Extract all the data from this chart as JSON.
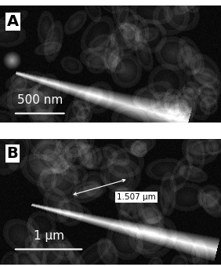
{
  "fig_width": 2.82,
  "fig_height": 3.4,
  "dpi": 100,
  "panel_A_label": "A",
  "panel_B_label": "B",
  "scale_bar_A_text": "500 nm",
  "scale_bar_B_text": "1 μm",
  "measurement_text": "1.507 μm",
  "bg_color": "#111111",
  "separator_color": "#ffffff",
  "label_bg_color": "#ffffff",
  "label_text_color": "#000000",
  "scale_bar_color": "#ffffff",
  "measurement_line_color": "#ffffff",
  "measurement_box_color": "#ffffff",
  "measurement_text_color": "#000000"
}
